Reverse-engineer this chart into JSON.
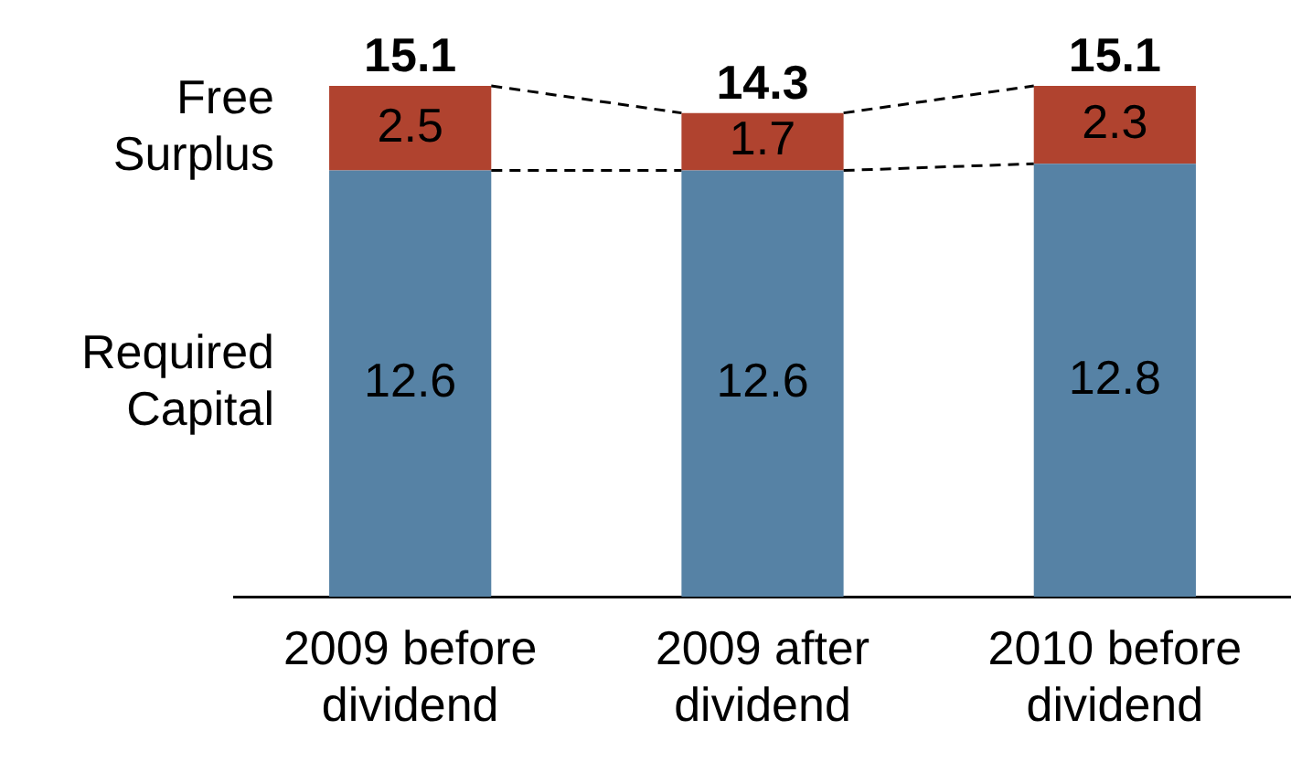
{
  "chart_data": {
    "type": "bar",
    "stacked": true,
    "data_labels": true,
    "legend": false,
    "grid": false,
    "categories": [
      "2009 before dividend",
      "2009 after dividend",
      "2010 before dividend"
    ],
    "series": [
      {
        "name": "Required Capital",
        "color": "#5682a5",
        "values": [
          12.6,
          12.6,
          12.8
        ]
      },
      {
        "name": "Free Surplus",
        "color": "#b0432f",
        "values": [
          2.5,
          1.7,
          2.3
        ]
      }
    ],
    "totals": [
      "15.1",
      "14.3",
      "15.1"
    ]
  }
}
